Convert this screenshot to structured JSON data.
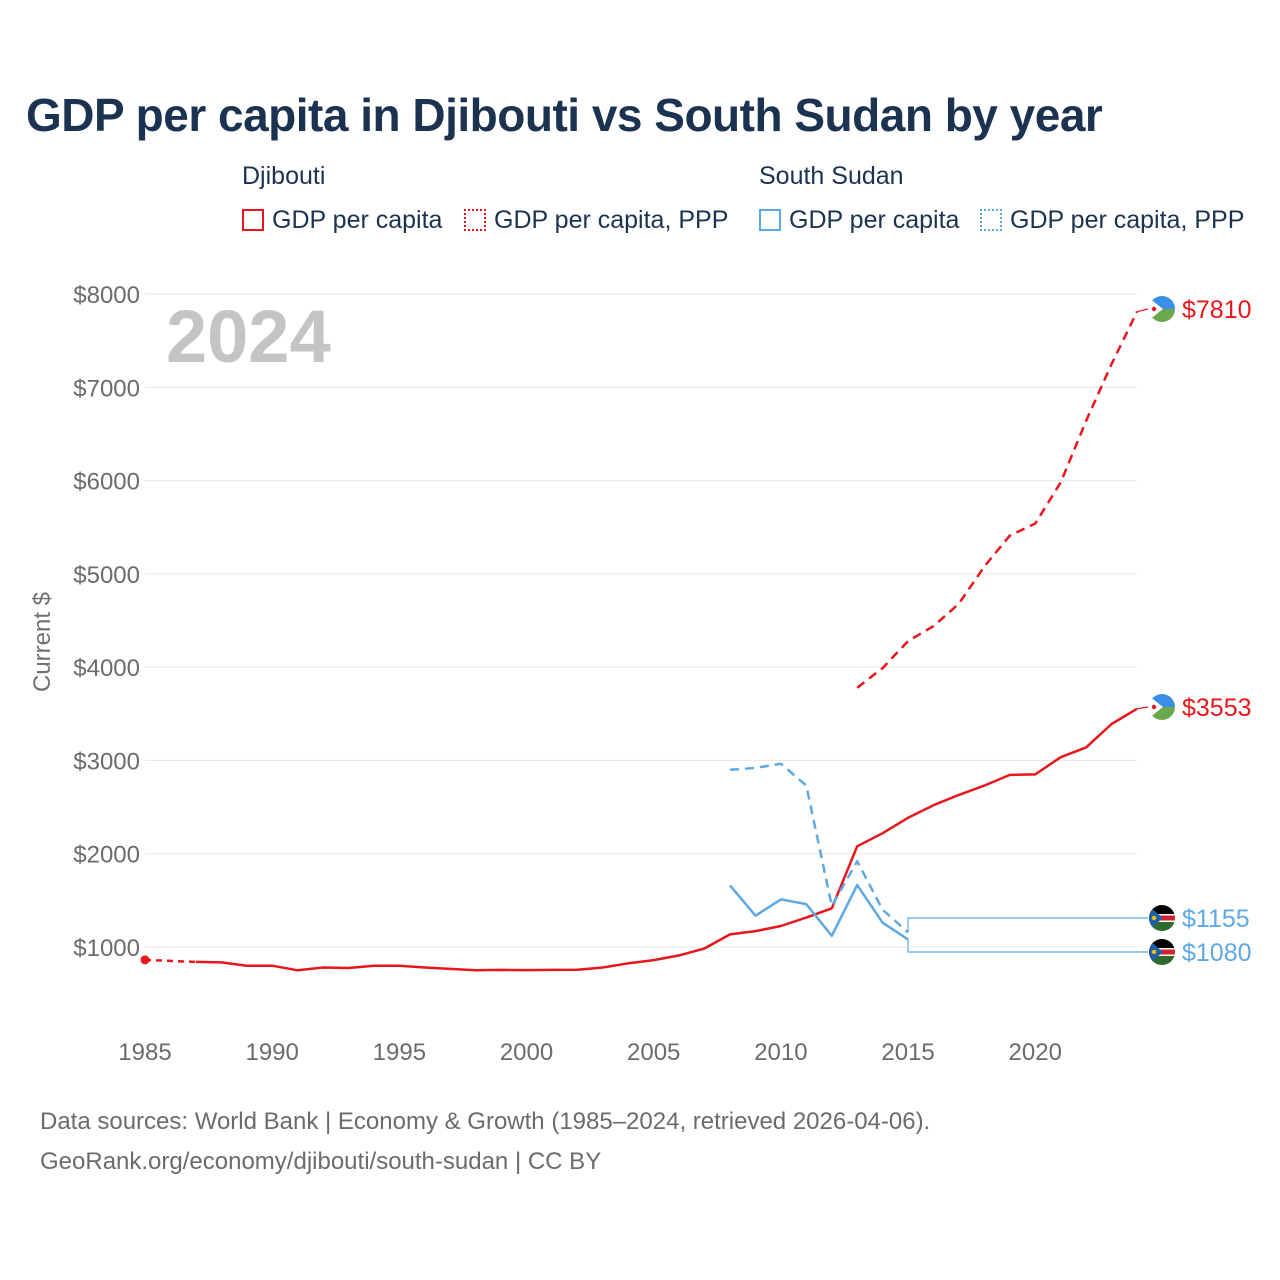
{
  "title": "GDP per capita in Djibouti vs South Sudan by year",
  "legend": {
    "djibouti": {
      "label": "Djibouti",
      "items": [
        {
          "label": "GDP per capita",
          "style": "solid",
          "color": "#e8161b"
        },
        {
          "label": "GDP per capita, PPP",
          "style": "dotted",
          "color": "#e8161b"
        }
      ]
    },
    "south_sudan": {
      "label": "South Sudan",
      "items": [
        {
          "label": "GDP per capita",
          "style": "solid",
          "color": "#5ea8e4"
        },
        {
          "label": "GDP per capita, PPP",
          "style": "dotted",
          "color": "#5ea8e4"
        }
      ]
    }
  },
  "sources": {
    "line1": "Data sources: World Bank | Economy & Growth (1985–2024, retrieved 2026-04-06).",
    "line2": "GeoRank.org/economy/djibouti/south-sudan | CC BY"
  },
  "chart_data": {
    "type": "line",
    "year_label": "2024",
    "ylabel": "Current $",
    "xlim": [
      1985,
      2024
    ],
    "ylim": [
      300,
      8000
    ],
    "x_ticks": [
      1985,
      1990,
      1995,
      2000,
      2005,
      2010,
      2015,
      2020
    ],
    "y_ticks": [
      1000,
      2000,
      3000,
      4000,
      5000,
      6000,
      7000,
      8000
    ],
    "y_tick_labels": [
      "$1000",
      "$2000",
      "$3000",
      "$4000",
      "$5000",
      "$6000",
      "$7000",
      "$8000"
    ],
    "series": [
      {
        "name": "Djibouti GDP per capita",
        "color": "#e8161b",
        "dash": "solid",
        "gap_to": 1987,
        "points": [
          [
            1985,
            862
          ],
          [
            1987,
            840
          ],
          [
            1988,
            835
          ],
          [
            1989,
            800
          ],
          [
            1990,
            800
          ],
          [
            1991,
            750
          ],
          [
            1992,
            780
          ],
          [
            1993,
            775
          ],
          [
            1994,
            800
          ],
          [
            1995,
            800
          ],
          [
            1996,
            780
          ],
          [
            1997,
            765
          ],
          [
            1998,
            750
          ],
          [
            1999,
            755
          ],
          [
            2000,
            752
          ],
          [
            2001,
            755
          ],
          [
            2002,
            757
          ],
          [
            2003,
            780
          ],
          [
            2004,
            825
          ],
          [
            2005,
            860
          ],
          [
            2006,
            910
          ],
          [
            2007,
            985
          ],
          [
            2008,
            1135
          ],
          [
            2009,
            1170
          ],
          [
            2010,
            1225
          ],
          [
            2011,
            1315
          ],
          [
            2012,
            1415
          ],
          [
            2013,
            2080
          ],
          [
            2014,
            2220
          ],
          [
            2015,
            2385
          ],
          [
            2016,
            2520
          ],
          [
            2017,
            2630
          ],
          [
            2018,
            2730
          ],
          [
            2019,
            2845
          ],
          [
            2020,
            2850
          ],
          [
            2021,
            3035
          ],
          [
            2022,
            3140
          ],
          [
            2023,
            3390
          ],
          [
            2024,
            3553
          ]
        ]
      },
      {
        "name": "Djibouti GDP per capita, PPP",
        "color": "#e8161b",
        "dash": "dashed",
        "points": [
          [
            2013,
            3780
          ],
          [
            2014,
            3990
          ],
          [
            2015,
            4280
          ],
          [
            2016,
            4440
          ],
          [
            2017,
            4680
          ],
          [
            2018,
            5080
          ],
          [
            2019,
            5410
          ],
          [
            2020,
            5540
          ],
          [
            2021,
            5980
          ],
          [
            2022,
            6640
          ],
          [
            2023,
            7250
          ],
          [
            2024,
            7810
          ]
        ]
      },
      {
        "name": "South Sudan GDP per capita",
        "color": "#5ea8e4",
        "dash": "solid",
        "points": [
          [
            2008,
            1660
          ],
          [
            2009,
            1335
          ],
          [
            2010,
            1510
          ],
          [
            2011,
            1460
          ],
          [
            2012,
            1120
          ],
          [
            2013,
            1665
          ],
          [
            2014,
            1260
          ],
          [
            2015,
            1080
          ]
        ]
      },
      {
        "name": "South Sudan GDP per capita, PPP",
        "color": "#5ea8e4",
        "dash": "dashed",
        "points": [
          [
            2008,
            2900
          ],
          [
            2009,
            2920
          ],
          [
            2010,
            2965
          ],
          [
            2011,
            2730
          ],
          [
            2012,
            1440
          ],
          [
            2013,
            1920
          ],
          [
            2014,
            1400
          ],
          [
            2015,
            1155
          ]
        ]
      }
    ],
    "end_labels": [
      {
        "value": 7810,
        "label": "$7810",
        "color": "#e8161b",
        "country": "djibouti"
      },
      {
        "value": 3553,
        "label": "$3553",
        "color": "#e8161b",
        "country": "djibouti"
      },
      {
        "value": 1155,
        "label": "$1155",
        "color": "#5ea8e4",
        "country": "south_sudan"
      },
      {
        "value": 1080,
        "label": "$1080",
        "color": "#5ea8e4",
        "country": "south_sudan"
      }
    ],
    "flag_colors": {
      "djibouti": [
        "#3b8fe6",
        "#6aa84f",
        "#ffffff",
        "#e8161b"
      ],
      "south_sudan": [
        "#000000",
        "#ffffff",
        "#d2232a",
        "#2e6b2e",
        "#1f5fa8",
        "#f2c200"
      ]
    }
  }
}
